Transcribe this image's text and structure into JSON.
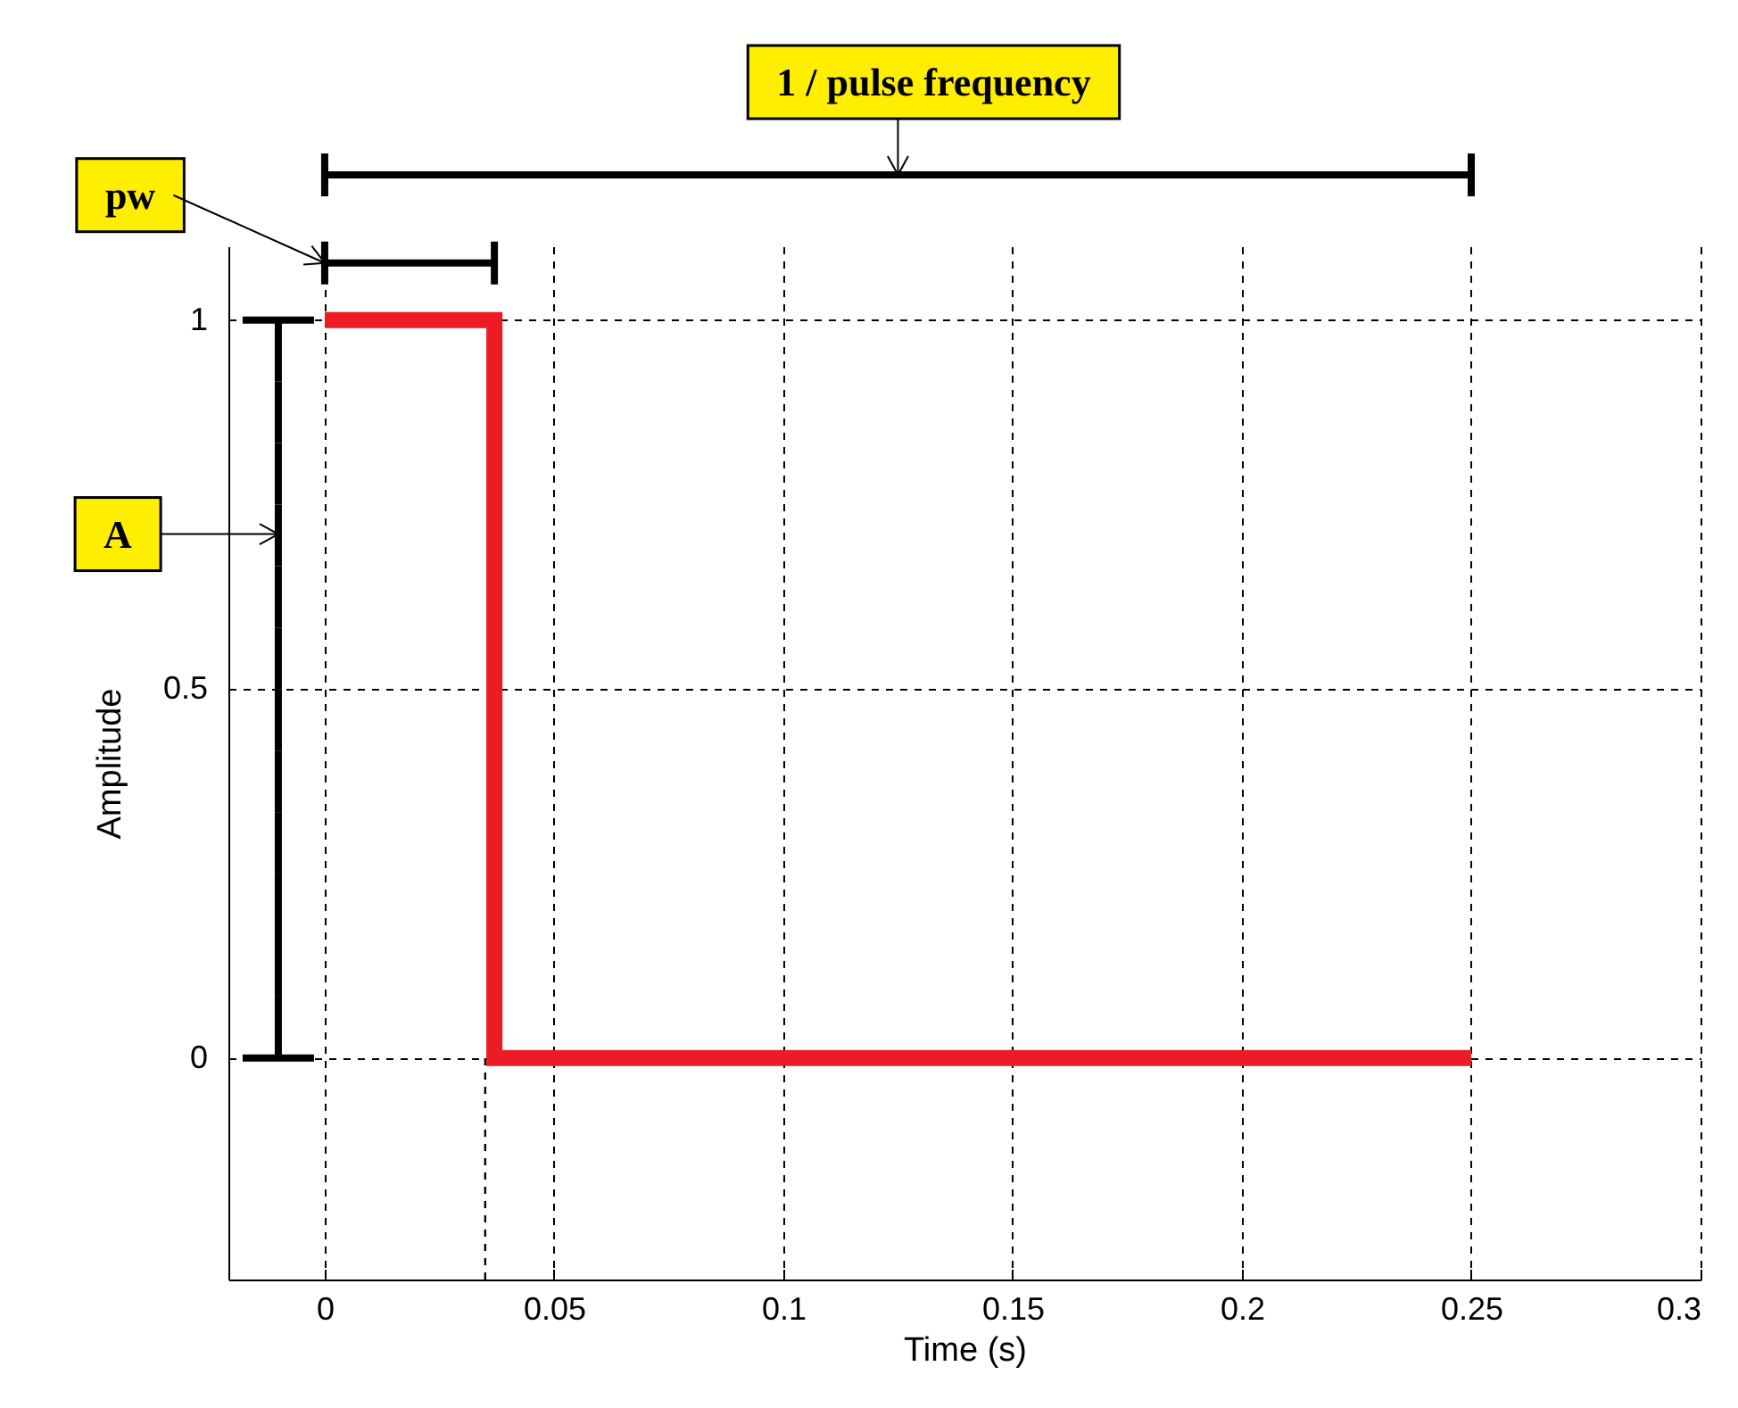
{
  "chart_data": {
    "type": "step",
    "xlabel": "Time (s)",
    "ylabel": "Amplitude",
    "series": [
      {
        "color": "#ed1c24",
        "x": [
          0,
          0.037,
          0.25
        ],
        "values": [
          1,
          0,
          0
        ]
      }
    ],
    "xlim": [
      -0.021,
      0.3
    ],
    "ylim": [
      -0.3,
      1.1
    ],
    "xticks": [
      0,
      0.05,
      0.1,
      0.15,
      0.2,
      0.25,
      0.3
    ],
    "yticks": [
      0,
      0.5,
      1
    ],
    "grid": true,
    "line_style": "solid",
    "ref_lines": [
      {
        "axis": "x",
        "value": 0.035,
        "color": "#000000",
        "line_style": "dashed"
      }
    ],
    "annotations": [
      "1 / pulse frequency",
      "pw",
      "A"
    ]
  }
}
